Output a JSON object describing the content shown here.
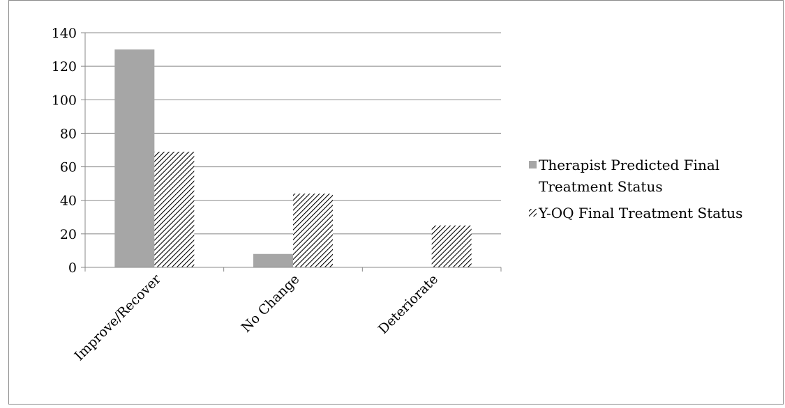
{
  "chart_data": {
    "type": "bar",
    "title": "",
    "xlabel": "",
    "ylabel": "",
    "categories": [
      "Improve/Recover",
      "No Change",
      "Deteriorate"
    ],
    "series": [
      {
        "name": "Therapist Predicted Final Treatment Status",
        "values": [
          130,
          8,
          0
        ],
        "fill": "solid",
        "color": "#a6a6a6"
      },
      {
        "name": "Y-OQ Final Treatment Status",
        "values": [
          69,
          44,
          25
        ],
        "fill": "hatched",
        "color": "#000000"
      }
    ],
    "ylim": [
      0,
      140
    ],
    "yticks": [
      0,
      20,
      40,
      60,
      80,
      100,
      120,
      140
    ],
    "grid": true,
    "legend": {
      "placement": "right",
      "entries": [
        {
          "lines": [
            "Therapist Predicted Final",
            "Treatment Status"
          ]
        },
        {
          "lines": [
            "Y-OQ Final Treatment Status"
          ]
        }
      ]
    }
  }
}
